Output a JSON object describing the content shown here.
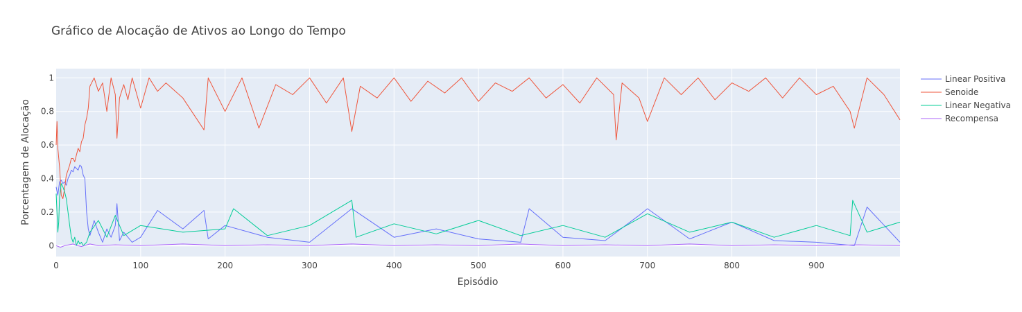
{
  "chart_data": {
    "type": "line",
    "title": "Gráfico de Alocação de Ativos ao Longo do Tempo",
    "xlabel": "Episódio",
    "ylabel": "Porcentagem de Alocação",
    "xlim": [
      0,
      999
    ],
    "ylim": [
      -0.065,
      1.055
    ],
    "x_ticks": [
      0,
      100,
      200,
      300,
      400,
      500,
      600,
      700,
      800,
      900
    ],
    "x_tick_labels": [
      "0",
      "100",
      "200",
      "300",
      "400",
      "500",
      "600",
      "700",
      "800",
      "900"
    ],
    "y_ticks": [
      0,
      0.2,
      0.4,
      0.6,
      0.8,
      1
    ],
    "y_tick_labels": [
      "0",
      "0.2",
      "0.4",
      "0.6",
      "0.8",
      "1"
    ],
    "grid": true,
    "legend_position": "right",
    "background_color": "#E5ECF6",
    "series": [
      {
        "name": "Linear Positiva",
        "color": "#636EFA",
        "x": [
          0,
          2,
          4,
          6,
          8,
          10,
          12,
          14,
          16,
          18,
          20,
          22,
          24,
          26,
          28,
          30,
          32,
          34,
          36,
          38,
          40,
          45,
          50,
          55,
          60,
          65,
          70,
          72,
          75,
          80,
          90,
          100,
          120,
          150,
          175,
          180,
          200,
          250,
          300,
          350,
          400,
          450,
          500,
          550,
          560,
          600,
          650,
          690,
          700,
          750,
          800,
          850,
          900,
          945,
          960,
          999
        ],
        "values": [
          0.35,
          0.3,
          0.38,
          0.39,
          0.37,
          0.38,
          0.36,
          0.4,
          0.42,
          0.45,
          0.44,
          0.47,
          0.46,
          0.45,
          0.48,
          0.47,
          0.42,
          0.4,
          0.2,
          0.1,
          0.06,
          0.15,
          0.08,
          0.02,
          0.1,
          0.05,
          0.12,
          0.25,
          0.03,
          0.08,
          0.02,
          0.05,
          0.21,
          0.1,
          0.21,
          0.04,
          0.12,
          0.05,
          0.02,
          0.22,
          0.05,
          0.1,
          0.04,
          0.02,
          0.22,
          0.05,
          0.03,
          0.18,
          0.22,
          0.04,
          0.14,
          0.03,
          0.02,
          0.0,
          0.23,
          0.02
        ]
      },
      {
        "name": "Senoide",
        "color": "#EF553B",
        "x": [
          0,
          1,
          2,
          4,
          6,
          8,
          10,
          12,
          14,
          16,
          18,
          20,
          22,
          24,
          26,
          28,
          30,
          32,
          34,
          36,
          38,
          40,
          45,
          50,
          55,
          60,
          65,
          70,
          72,
          75,
          80,
          85,
          90,
          100,
          110,
          120,
          130,
          150,
          175,
          180,
          200,
          220,
          240,
          260,
          280,
          300,
          320,
          340,
          350,
          360,
          380,
          400,
          420,
          440,
          460,
          480,
          500,
          520,
          540,
          560,
          580,
          600,
          620,
          640,
          660,
          663,
          670,
          690,
          700,
          720,
          740,
          760,
          780,
          800,
          820,
          840,
          860,
          880,
          900,
          920,
          940,
          945,
          960,
          980,
          999
        ],
        "values": [
          0.6,
          0.74,
          0.58,
          0.47,
          0.3,
          0.28,
          0.34,
          0.42,
          0.45,
          0.48,
          0.52,
          0.52,
          0.5,
          0.54,
          0.58,
          0.56,
          0.62,
          0.64,
          0.72,
          0.76,
          0.82,
          0.95,
          1.0,
          0.92,
          0.97,
          0.8,
          1.0,
          0.9,
          0.64,
          0.88,
          0.96,
          0.87,
          1.0,
          0.82,
          1.0,
          0.92,
          0.97,
          0.88,
          0.69,
          1.0,
          0.8,
          1.0,
          0.7,
          0.96,
          0.9,
          1.0,
          0.85,
          1.0,
          0.68,
          0.95,
          0.88,
          1.0,
          0.86,
          0.98,
          0.91,
          1.0,
          0.86,
          0.97,
          0.92,
          1.0,
          0.88,
          0.96,
          0.85,
          1.0,
          0.9,
          0.63,
          0.97,
          0.88,
          0.74,
          1.0,
          0.9,
          1.0,
          0.87,
          0.97,
          0.92,
          1.0,
          0.88,
          1.0,
          0.9,
          0.95,
          0.8,
          0.7,
          1.0,
          0.9,
          0.75
        ]
      },
      {
        "name": "Linear Negativa",
        "color": "#00CC96",
        "x": [
          0,
          1,
          2,
          3,
          4,
          6,
          8,
          10,
          12,
          14,
          16,
          18,
          20,
          22,
          24,
          26,
          28,
          30,
          32,
          34,
          36,
          40,
          50,
          60,
          70,
          80,
          100,
          150,
          200,
          210,
          250,
          300,
          350,
          355,
          400,
          450,
          500,
          550,
          600,
          650,
          700,
          750,
          800,
          850,
          900,
          940,
          943,
          960,
          999
        ],
        "values": [
          0.31,
          0.2,
          0.08,
          0.14,
          0.29,
          0.37,
          0.35,
          0.32,
          0.28,
          0.2,
          0.12,
          0.05,
          0.02,
          0.05,
          0.0,
          0.03,
          0.01,
          0.02,
          0.0,
          0.01,
          0.02,
          0.08,
          0.15,
          0.05,
          0.18,
          0.06,
          0.12,
          0.08,
          0.1,
          0.22,
          0.06,
          0.12,
          0.27,
          0.05,
          0.13,
          0.07,
          0.15,
          0.06,
          0.12,
          0.05,
          0.19,
          0.08,
          0.14,
          0.05,
          0.12,
          0.06,
          0.27,
          0.08,
          0.14
        ]
      },
      {
        "name": "Recompensa",
        "color": "#AB63FA",
        "x": [
          0,
          5,
          10,
          15,
          20,
          25,
          30,
          40,
          50,
          70,
          100,
          150,
          200,
          250,
          300,
          350,
          400,
          450,
          500,
          550,
          600,
          650,
          700,
          750,
          800,
          850,
          900,
          950,
          999
        ],
        "values": [
          0.0,
          -0.01,
          0.0,
          0.005,
          0.01,
          0.0,
          -0.005,
          0.01,
          0.0,
          0.005,
          0.0,
          0.01,
          0.0,
          0.005,
          0.0,
          0.01,
          0.0,
          0.005,
          0.0,
          0.01,
          0.0,
          0.005,
          0.0,
          0.01,
          0.0,
          0.005,
          0.0,
          0.005,
          0.0
        ]
      }
    ]
  }
}
